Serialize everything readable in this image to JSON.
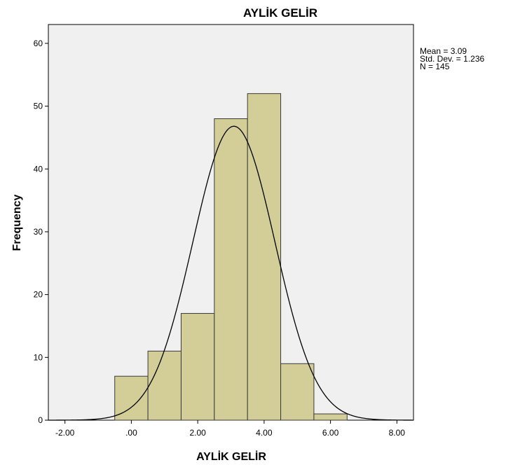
{
  "chart_data": {
    "type": "bar",
    "title": "AYLİK GELİR",
    "xlabel": "AYLİK GELİR",
    "ylabel": "Frequency",
    "bin_width": 1,
    "bins": [
      {
        "x": 0,
        "value": 7
      },
      {
        "x": 1,
        "value": 11
      },
      {
        "x": 2,
        "value": 17
      },
      {
        "x": 3,
        "value": 48
      },
      {
        "x": 4,
        "value": 52
      },
      {
        "x": 5,
        "value": 9
      },
      {
        "x": 6,
        "value": 1
      }
    ],
    "xlim": [
      -2.5,
      8.5
    ],
    "ylim": [
      0,
      63
    ],
    "xticks": [
      -2,
      0,
      2,
      4,
      6,
      8
    ],
    "xtick_labels": [
      "-2.00",
      ".00",
      "2.00",
      "4.00",
      "6.00",
      "8.00"
    ],
    "yticks": [
      0,
      10,
      20,
      30,
      40,
      50,
      60
    ],
    "ytick_labels": [
      "0",
      "10",
      "20",
      "30",
      "40",
      "50",
      "60"
    ],
    "normal_curve": {
      "mean": 3.09,
      "sd": 1.236,
      "n": 145
    },
    "stats_lines": [
      "Mean = 3.09",
      "Std. Dev. = 1.236",
      "N = 145"
    ],
    "grid": false,
    "colors": {
      "bar_fill": "#d3ce97",
      "bar_stroke": "#3a3a3a",
      "plot_bg": "#f0f0f0",
      "curve": "#000000"
    }
  }
}
